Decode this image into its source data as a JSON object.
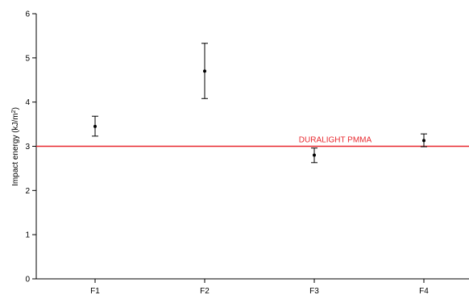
{
  "chart_data": {
    "type": "scatter",
    "title": "",
    "xlabel": "",
    "ylabel": "Impact energy (kJ/m",
    "ylabel_sup": "2",
    "ylabel_suffix": ")",
    "categories": [
      "F1",
      "F2",
      "F3",
      "F4"
    ],
    "series": [
      {
        "values": [
          3.45,
          4.7,
          2.8,
          3.13
        ],
        "error_low": [
          3.23,
          4.08,
          2.63,
          2.99
        ],
        "error_high": [
          3.68,
          5.33,
          2.96,
          3.28
        ]
      }
    ],
    "reference_line": {
      "value": 3.0,
      "label": "DURALIGHT  PMMA",
      "color": "#e8282e"
    },
    "ylim": [
      0,
      6
    ],
    "yticks": [
      "0",
      "1",
      "2",
      "3",
      "4",
      "5",
      "6"
    ],
    "grid": false,
    "marker_color": "#000000"
  }
}
